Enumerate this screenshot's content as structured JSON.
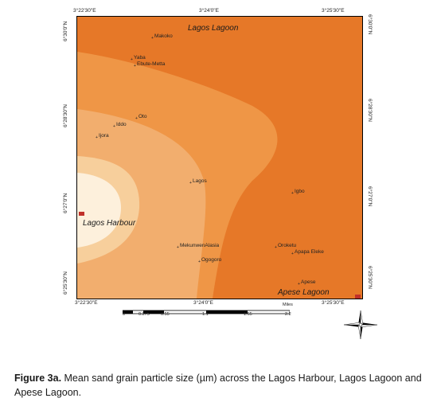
{
  "map": {
    "lon_ticks_top": [
      "3°22'30\"E",
      "3°24'0\"E",
      "3°25'30\"E"
    ],
    "lon_ticks_bottom": [
      "3°22'30\"E",
      "3°24'0\"E",
      "3°25'30\"E"
    ],
    "lat_ticks_left": [
      "6°30'0\"N",
      "6°28'30\"N",
      "6°27'0\"N",
      "6°25'30\"N"
    ],
    "lat_ticks_right": [
      "6°30'0\"N",
      "6°28'30\"N",
      "6°27'0\"N",
      "6°25'30\"N"
    ],
    "water_bodies": {
      "lagos_lagoon": "Lagos Lagoon",
      "lagos_harbour": "Lagos Harbour",
      "apese_lagoon": "Apese Lagoon"
    },
    "places": {
      "makoko": "Makoko",
      "yaba": "Yaba",
      "ebute_metta": "Ebute-Metta",
      "oto": "Oto",
      "iddo": "Iddo",
      "ijora": "Ijora",
      "lagos": "Lagos",
      "igbo": "Igbo",
      "mekunwen_alasia": "MekunwenAlasia",
      "ogogoro": "Ogogoro",
      "oroketu": "Oroketu",
      "apapa_eleke": "Apapa Eleke",
      "apese": "Apese"
    },
    "zone_colors": [
      "#fdf0dc",
      "#f7cf9c",
      "#f2ae6e",
      "#ef9646",
      "#e67828"
    ],
    "scale": {
      "unit": "Miles",
      "ticks": [
        "0",
        "0.275",
        "0.55",
        "1.1",
        "1.65",
        "2.2"
      ]
    },
    "compass_icon": "north-arrow-icon"
  },
  "caption": {
    "label": "Figure 3a.",
    "text": " Mean sand grain particle size (µm) across the Lagos Harbour, Lagos Lagoon and Apese Lagoon."
  }
}
